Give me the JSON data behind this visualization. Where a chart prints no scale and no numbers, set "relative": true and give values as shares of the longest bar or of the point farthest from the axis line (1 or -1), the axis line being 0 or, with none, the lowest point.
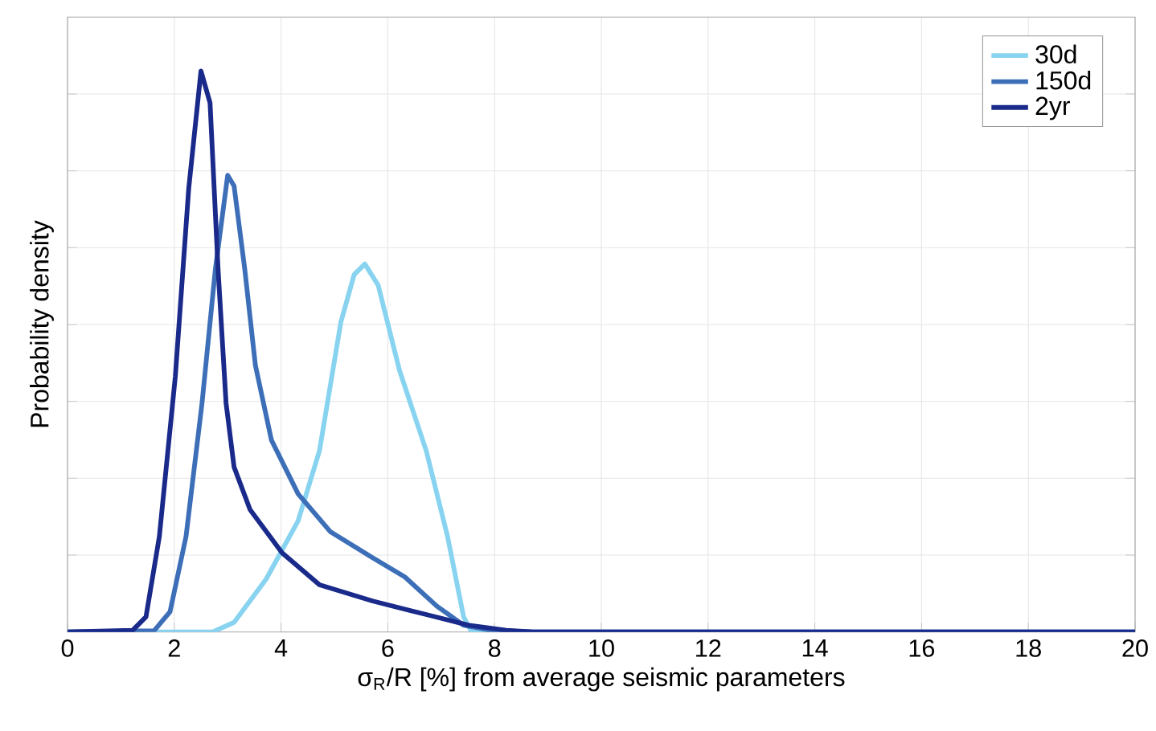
{
  "chart_data": {
    "type": "line",
    "xlabel": "σ$_{R}$/R [%] from average seismic parameters",
    "ylabel": "Probability density",
    "relative": true,
    "xlim": [
      0,
      20
    ],
    "xticks": [
      0,
      2,
      4,
      6,
      8,
      10,
      12,
      14,
      16,
      18,
      20
    ],
    "grid": true,
    "legend": "top right",
    "tick_labels": "x",
    "marker": "none",
    "line_style": "solid",
    "series": [
      {
        "name": "30d",
        "color": "#87d3f0",
        "x": [
          0,
          2.72,
          3.12,
          3.72,
          4.32,
          4.72,
          5.12,
          5.37,
          5.57,
          5.82,
          6.22,
          6.72,
          7.12,
          7.42,
          7.57,
          20
        ],
        "values": [
          0,
          0,
          0.017,
          0.094,
          0.198,
          0.323,
          0.552,
          0.637,
          0.656,
          0.618,
          0.466,
          0.323,
          0.17,
          0.027,
          0,
          0
        ]
      },
      {
        "name": "150d",
        "color": "#3d6fb8",
        "x": [
          0,
          1.62,
          1.92,
          2.22,
          2.52,
          2.77,
          3.0,
          3.12,
          3.32,
          3.52,
          3.82,
          4.32,
          4.92,
          5.72,
          6.32,
          6.92,
          7.42,
          7.92,
          8.72,
          20
        ],
        "values": [
          0,
          0.002,
          0.036,
          0.17,
          0.408,
          0.647,
          0.814,
          0.795,
          0.647,
          0.475,
          0.342,
          0.246,
          0.179,
          0.132,
          0.098,
          0.046,
          0.012,
          0.003,
          0,
          0
        ]
      },
      {
        "name": "2yr",
        "color": "#1a2a8a",
        "x": [
          0,
          1.22,
          1.47,
          1.72,
          2.02,
          2.27,
          2.5,
          2.67,
          2.82,
          2.97,
          3.12,
          3.42,
          4.02,
          4.72,
          5.72,
          6.72,
          7.52,
          8.22,
          8.72,
          20
        ],
        "values": [
          0,
          0.003,
          0.027,
          0.17,
          0.456,
          0.79,
          1,
          0.943,
          0.647,
          0.408,
          0.294,
          0.218,
          0.141,
          0.084,
          0.055,
          0.031,
          0.012,
          0.003,
          0,
          0
        ]
      }
    ]
  }
}
